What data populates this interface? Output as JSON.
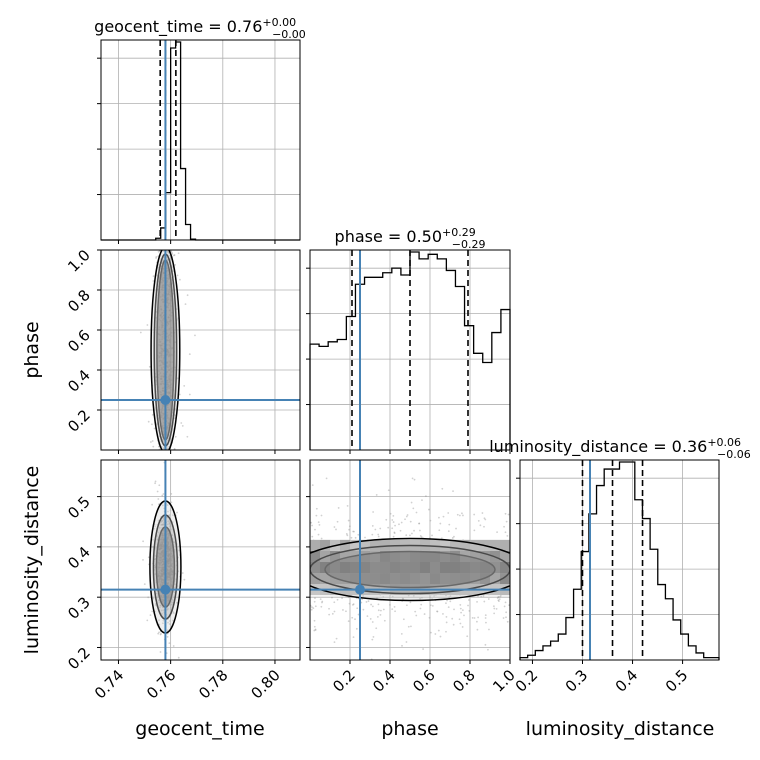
{
  "chart_data": {
    "type": "corner",
    "parameters": [
      "geocent_time",
      "phase",
      "luminosity_distance"
    ],
    "axis_labels": [
      "geocent_time",
      "phase",
      "luminosity_distance"
    ],
    "ranges": {
      "geocent_time": [
        0.7333,
        0.8096
      ],
      "phase": [
        0.0,
        1.0
      ],
      "luminosity_distance": [
        0.1751,
        0.5728
      ]
    },
    "truths": {
      "geocent_time": 0.758,
      "phase": 0.25,
      "luminosity_distance": 0.315
    },
    "truth_color": "#4682b4",
    "grid": true,
    "titles": {
      "geocent_time": {
        "prefix": "geocent_time = 0.76",
        "plus": "+0.00",
        "minus": "−0.00"
      },
      "phase": {
        "prefix": "phase = 0.50",
        "plus": "+0.29",
        "minus": "−0.29"
      },
      "luminosity_distance": {
        "prefix": "luminosity_distance = 0.36",
        "plus": "+0.06",
        "minus": "−0.06"
      }
    },
    "ticks": {
      "geocent_time": [
        "0.74",
        "0.76",
        "0.78",
        "0.80"
      ],
      "phase": [
        "0.2",
        "0.4",
        "0.6",
        "0.8",
        "1.0"
      ],
      "luminosity_distance": [
        "0.2",
        "0.3",
        "0.4",
        "0.5"
      ]
    },
    "histograms": {
      "geocent_time": {
        "bins_start": 0.7333,
        "bins_end": 0.8096,
        "counts": [
          0,
          0,
          0,
          0,
          0,
          0,
          0,
          0,
          0,
          0,
          0,
          2,
          14,
          55,
          223,
          230,
          83,
          18,
          1,
          0,
          0,
          0,
          0,
          0,
          0,
          0,
          0,
          0,
          0,
          0,
          0,
          0,
          0,
          0,
          0,
          0,
          0,
          0,
          0,
          0
        ],
        "quantiles": [
          0.756,
          0.758,
          0.762
        ]
      },
      "phase": {
        "bins_start": 0.0,
        "bins_end": 1.0,
        "counts": [
          46,
          45,
          47,
          48,
          58,
          72,
          75,
          75,
          77,
          79,
          76,
          86,
          83,
          85,
          83,
          78,
          71,
          54,
          42,
          38,
          51,
          61
        ],
        "quantiles": [
          0.21,
          0.5,
          0.79
        ]
      },
      "luminosity_distance": {
        "bins_start": 0.1751,
        "bins_end": 0.5728,
        "counts": [
          1,
          2,
          4,
          6,
          8,
          11,
          18,
          30,
          46,
          62,
          74,
          81,
          81,
          84,
          84,
          68,
          60,
          47,
          32,
          26,
          17,
          11,
          6,
          3,
          1,
          1
        ],
        "quantiles": [
          0.3,
          0.36,
          0.42
        ]
      }
    }
  }
}
